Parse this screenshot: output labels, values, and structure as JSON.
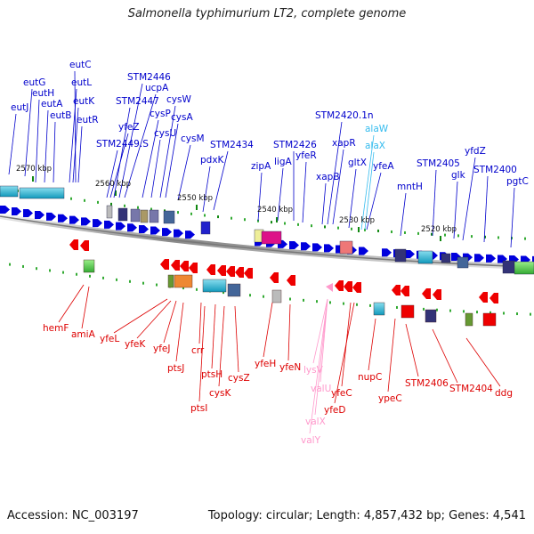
{
  "title": "Salmonella typhimurium LT2, complete genome",
  "footer": {
    "accession": "Accession: NC_003197",
    "stats": "Topology: circular; Length: 4,857,432 bp; Genes: 4,541"
  },
  "colors": {
    "forward_gene": "#0000dd",
    "reverse_gene": "#ee0000",
    "forward_label": "#0000cc",
    "reverse_label": "#dd0000",
    "rna_forward": "#33bbee",
    "rna_reverse": "#ff99cc",
    "backbone": "#888888"
  },
  "kbp_ticks": [
    "2570 kbp",
    "2560 kbp",
    "2550 kbp",
    "2540 kbp",
    "2530 kbp",
    "2520 kbp"
  ],
  "forward_labels": [
    "eutC",
    "eutG",
    "eutL",
    "eutH",
    "eutJ",
    "eutA",
    "eutK",
    "eutB",
    "eutR",
    "STM2446",
    "ucpA",
    "STM2447",
    "cysW",
    "cysP",
    "cysA",
    "yfeZ",
    "cysU",
    "STM2449.S",
    "cysM",
    "STM2434",
    "pdxK",
    "STM2426",
    "ligA",
    "zipA",
    "yfeR",
    "STM2420.1n",
    "xapR",
    "xapB",
    "gltX",
    "yfeA",
    "mntH",
    "STM2405",
    "glk",
    "yfdZ",
    "STM2400",
    "pgtC"
  ],
  "forward_rna_labels": [
    "alaW",
    "alaX"
  ],
  "reverse_labels": [
    "hemF",
    "amiA",
    "yfeL",
    "yfeK",
    "yfeJ",
    "ptsJ",
    "crr",
    "ptsH",
    "ptsI",
    "cysK",
    "cysZ",
    "yfeH",
    "yfeN",
    "yfeC",
    "yfeD",
    "nupC",
    "ypeC",
    "STM2406",
    "STM2404",
    "ddg"
  ],
  "reverse_rna_labels": [
    "lysV",
    "valU",
    "valX",
    "valY"
  ]
}
